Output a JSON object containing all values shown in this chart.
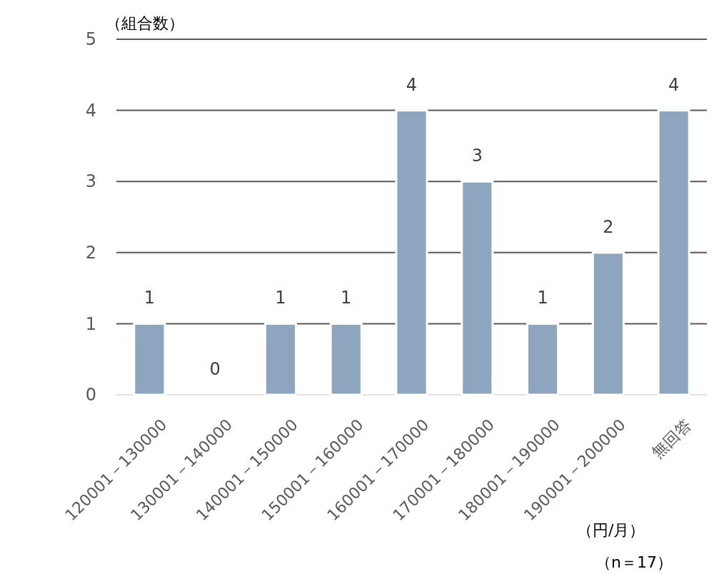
{
  "chart_data": {
    "type": "bar",
    "ylabel": "（組合数）",
    "xlabel": "（円/月）",
    "annotations": [
      "（n＝17）"
    ],
    "categories": [
      "120001－130000",
      "130001－140000",
      "140001－150000",
      "150001－160000",
      "160001－170000",
      "170001－180000",
      "180001－190000",
      "190001－200000",
      "無回答"
    ],
    "values": [
      1,
      0,
      1,
      1,
      4,
      3,
      1,
      2,
      4
    ],
    "color": "#8ea5c0",
    "ylim": [
      0,
      5
    ],
    "yticks": [
      0,
      1,
      2,
      3,
      4,
      5
    ],
    "grid": "y",
    "data_labels": true
  }
}
